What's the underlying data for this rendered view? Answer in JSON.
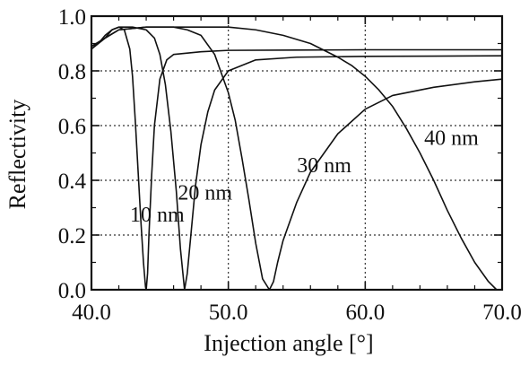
{
  "chart_data": {
    "type": "line",
    "title": "",
    "xlabel": "Injection angle [°]",
    "ylabel": "Reflectivity",
    "xlim": [
      40,
      70
    ],
    "ylim": [
      0,
      1
    ],
    "grid": true,
    "x_ticks": [
      {
        "value": 40,
        "label": "40.0"
      },
      {
        "value": 50,
        "label": "50.0"
      },
      {
        "value": 60,
        "label": "60.0"
      },
      {
        "value": 70,
        "label": "70.0"
      }
    ],
    "y_ticks": [
      {
        "value": 0,
        "label": "0.0"
      },
      {
        "value": 0.2,
        "label": "0.2"
      },
      {
        "value": 0.4,
        "label": "0.4"
      },
      {
        "value": 0.6,
        "label": "0.6"
      },
      {
        "value": 0.8,
        "label": "0.8"
      },
      {
        "value": 1.0,
        "label": "1.0"
      }
    ],
    "series": [
      {
        "name": "10 nm",
        "x": [
          40.0,
          40.5,
          41.0,
          41.5,
          42.0,
          42.4,
          42.8,
          43.0,
          43.2,
          43.4,
          43.6,
          43.8,
          43.95,
          44.0,
          44.1,
          44.2,
          44.4,
          44.6,
          45.0,
          45.5,
          46.0,
          48.0,
          50.0,
          55.0,
          60.0,
          65.0,
          70.0
        ],
        "y": [
          0.89,
          0.9,
          0.92,
          0.95,
          0.96,
          0.95,
          0.88,
          0.78,
          0.62,
          0.44,
          0.26,
          0.1,
          0.01,
          0.0,
          0.06,
          0.2,
          0.42,
          0.6,
          0.77,
          0.84,
          0.86,
          0.87,
          0.875,
          0.876,
          0.877,
          0.877,
          0.877
        ]
      },
      {
        "name": "20 nm",
        "x": [
          40.0,
          40.5,
          41.0,
          41.5,
          42.0,
          43.0,
          44.0,
          44.6,
          45.0,
          45.4,
          45.8,
          46.2,
          46.5,
          46.8,
          47.0,
          47.3,
          47.6,
          48.0,
          48.5,
          49.0,
          50.0,
          52.0,
          55.0,
          60.0,
          65.0,
          70.0
        ],
        "y": [
          0.88,
          0.9,
          0.93,
          0.95,
          0.96,
          0.96,
          0.95,
          0.92,
          0.86,
          0.75,
          0.58,
          0.36,
          0.15,
          0.0,
          0.06,
          0.22,
          0.38,
          0.53,
          0.65,
          0.73,
          0.8,
          0.84,
          0.85,
          0.853,
          0.854,
          0.855
        ]
      },
      {
        "name": "30 nm",
        "x": [
          40.0,
          41.0,
          42.0,
          44.0,
          46.0,
          47.0,
          48.0,
          49.0,
          50.0,
          50.5,
          51.0,
          51.5,
          52.0,
          52.5,
          53.0,
          53.3,
          53.6,
          54.0,
          55.0,
          56.0,
          58.0,
          60.0,
          62.0,
          65.0,
          68.0,
          70.0
        ],
        "y": [
          0.89,
          0.92,
          0.95,
          0.96,
          0.96,
          0.95,
          0.93,
          0.86,
          0.72,
          0.62,
          0.48,
          0.33,
          0.17,
          0.04,
          0.0,
          0.03,
          0.1,
          0.18,
          0.32,
          0.43,
          0.57,
          0.66,
          0.71,
          0.74,
          0.76,
          0.77
        ]
      },
      {
        "name": "40 nm",
        "x": [
          40.0,
          41.0,
          42.0,
          44.0,
          46.0,
          48.0,
          50.0,
          52.0,
          54.0,
          56.0,
          58.0,
          59.0,
          60.0,
          61.0,
          62.0,
          63.0,
          64.0,
          65.0,
          66.0,
          67.0,
          68.0,
          69.0,
          69.6,
          70.0
        ],
        "y": [
          0.88,
          0.92,
          0.95,
          0.96,
          0.96,
          0.96,
          0.96,
          0.95,
          0.93,
          0.9,
          0.85,
          0.82,
          0.78,
          0.73,
          0.67,
          0.59,
          0.5,
          0.4,
          0.29,
          0.19,
          0.1,
          0.03,
          0.0,
          0.0
        ]
      }
    ],
    "annotations": [
      {
        "text": "10 nm",
        "x": 44.8,
        "y": 0.25
      },
      {
        "text": "20 nm",
        "x": 48.3,
        "y": 0.33
      },
      {
        "text": "30 nm",
        "x": 57.0,
        "y": 0.43
      },
      {
        "text": "40 nm",
        "x": 66.3,
        "y": 0.53
      }
    ]
  }
}
